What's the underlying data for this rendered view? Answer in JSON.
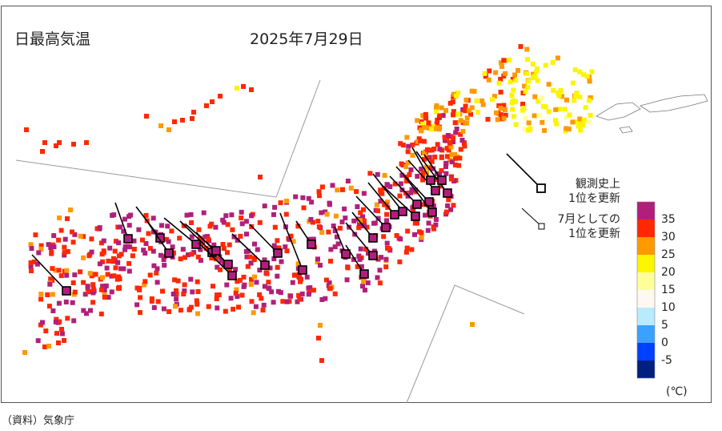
{
  "map": {
    "title": "日最高気温",
    "date": "2025年7月29日",
    "legend_record_line1": "観測史上",
    "legend_record_line2": "1位を更新",
    "legend_july_line1": "7月としての",
    "legend_july_line2": "1位を更新",
    "unit": "(℃)",
    "source": "（資料）気象庁"
  },
  "color_scale": [
    {
      "label": "35",
      "color": "#b0207a"
    },
    {
      "label": "30",
      "color": "#ff2800"
    },
    {
      "label": "25",
      "color": "#ff9900"
    },
    {
      "label": "20",
      "color": "#faf500"
    },
    {
      "label": "15",
      "color": "#ffff99"
    },
    {
      "label": "10",
      "color": "#fff8f0"
    },
    {
      "label": "5",
      "color": "#b9ebff"
    },
    {
      "label": "0",
      "color": "#3ca0ff"
    },
    {
      "label": "-5",
      "color": "#0041ff"
    },
    {
      "label": "",
      "color": "#002080"
    }
  ]
}
